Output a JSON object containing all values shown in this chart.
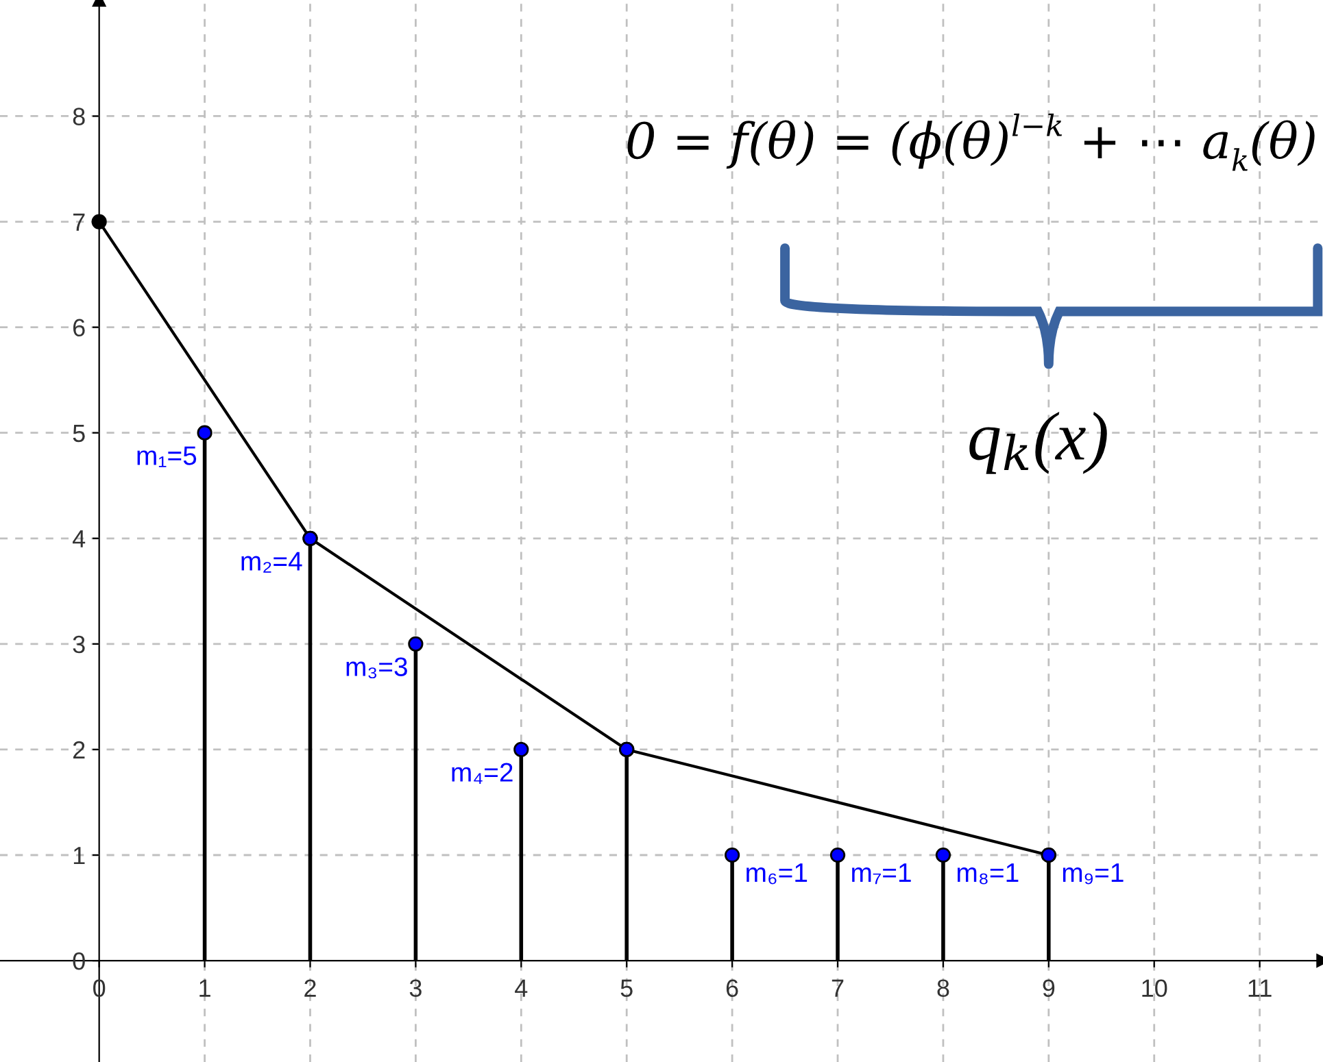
{
  "chart_data": {
    "type": "lollipop",
    "xlim": [
      -0.94,
      11.6
    ],
    "ylim": [
      -0.96,
      9.1
    ],
    "xticks": [
      0,
      1,
      2,
      3,
      4,
      5,
      6,
      7,
      8,
      9,
      10,
      11
    ],
    "yticks": [
      0,
      1,
      2,
      3,
      4,
      5,
      6,
      7,
      8
    ],
    "grid": true,
    "series": [
      {
        "type": "line",
        "x": [
          0,
          2,
          5,
          9
        ],
        "values": [
          7,
          4,
          2,
          1
        ],
        "color": "#000000",
        "marker": "circle"
      },
      {
        "x": [
          1,
          2,
          3,
          4,
          5,
          6,
          7,
          8,
          9
        ],
        "values": [
          5,
          4,
          3,
          2,
          2,
          1,
          1,
          1,
          1
        ],
        "color": "#0000ff",
        "marker": "circle",
        "value_labels": [
          "m₁=5",
          "m₂=4",
          "m₃=3",
          "m₄=2",
          null,
          "m₆=1",
          "m₇=1",
          "m₈=1",
          "m₉=1"
        ]
      }
    ],
    "annotations": [
      "0 = f(θ) = (ϕ(θ)$^{l−k}$ + ⋯ a$_{k}$(θ)",
      "q$_{k}$(x)"
    ]
  }
}
